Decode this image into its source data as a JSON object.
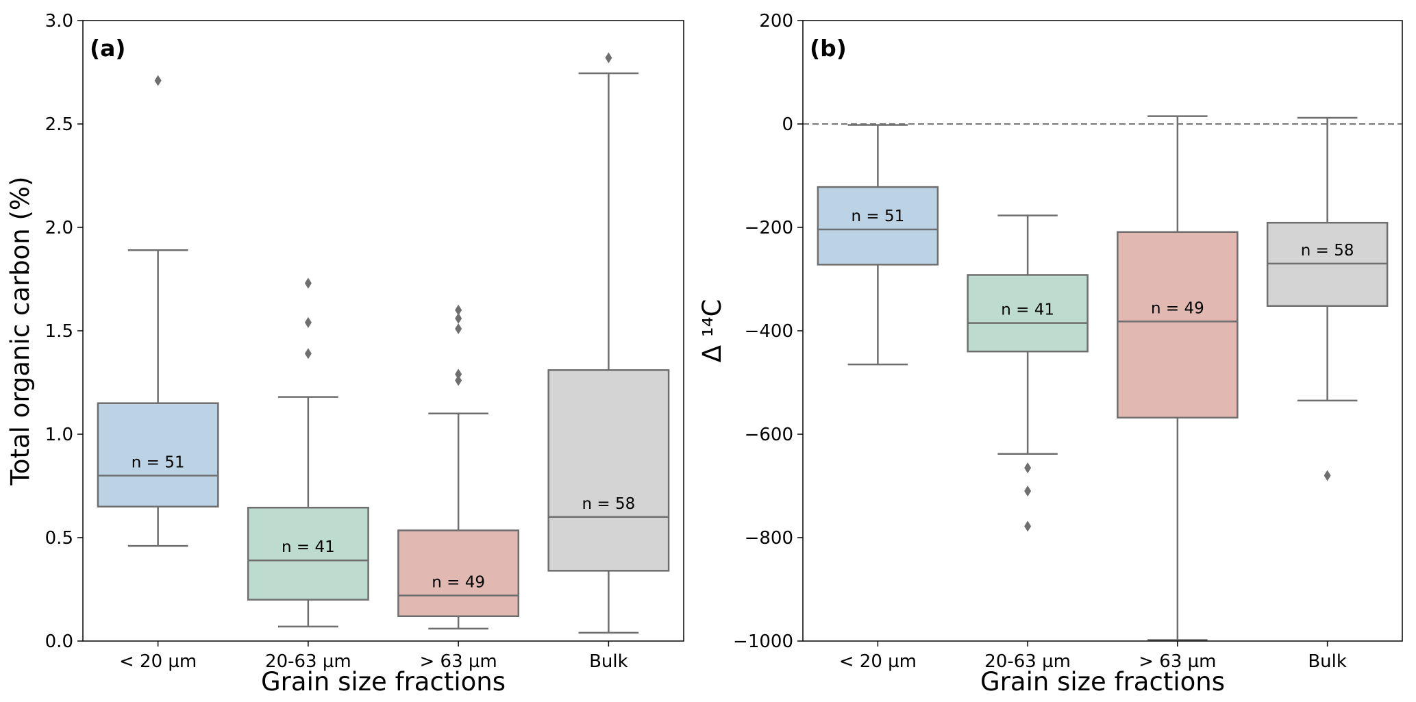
{
  "chart_data": [
    {
      "type": "box",
      "panel_label": "(a)",
      "xlabel": "Grain size fractions",
      "ylabel": "Total organic carbon (%)",
      "ylim": [
        0,
        3.0
      ],
      "yticks": [
        "0.0",
        "0.5",
        "1.0",
        "1.5",
        "2.0",
        "2.5",
        "3.0"
      ],
      "ytick_values": [
        0,
        0.5,
        1.0,
        1.5,
        2.0,
        2.5,
        3.0
      ],
      "categories": [
        "< 20 µm",
        "20-63 µm",
        "> 63 µm",
        "Bulk"
      ],
      "boxes": [
        {
          "min": 0.46,
          "q1": 0.65,
          "median": 0.8,
          "q3": 1.15,
          "max": 1.89,
          "outliers": [
            2.71
          ],
          "n_label": "n = 51",
          "color": "#bcd3e5"
        },
        {
          "min": 0.07,
          "q1": 0.2,
          "median": 0.39,
          "q3": 0.645,
          "max": 1.18,
          "outliers": [
            1.73,
            1.54,
            1.39
          ],
          "n_label": "n = 41",
          "color": "#bddccf"
        },
        {
          "min": 0.06,
          "q1": 0.12,
          "median": 0.22,
          "q3": 0.535,
          "max": 1.1,
          "outliers": [
            1.6,
            1.56,
            1.51,
            1.29,
            1.26
          ],
          "n_label": "n = 49",
          "color": "#e2b8b3"
        },
        {
          "min": 0.04,
          "q1": 0.34,
          "median": 0.6,
          "q3": 1.31,
          "max": 2.745,
          "outliers": [
            2.82
          ],
          "n_label": "n = 58",
          "color": "#d4d4d4"
        }
      ]
    },
    {
      "type": "box",
      "panel_label": "(b)",
      "xlabel": "Grain size fractions",
      "ylabel": "Δ ¹⁴C",
      "ylim": [
        -1000,
        200
      ],
      "yticks": [
        "−1000",
        "−800",
        "−600",
        "−400",
        "−200",
        "0",
        "200"
      ],
      "ytick_values": [
        -1000,
        -800,
        -600,
        -400,
        -200,
        0,
        200
      ],
      "reference_line": 0,
      "categories": [
        "< 20 µm",
        "20-63 µm",
        "> 63 µm",
        "Bulk"
      ],
      "boxes": [
        {
          "min": -465,
          "q1": -272,
          "median": -204,
          "q3": -122,
          "max": -2,
          "outliers": [],
          "n_label": "n = 51",
          "color": "#bcd3e5"
        },
        {
          "min": -638,
          "q1": -440,
          "median": -385,
          "q3": -292,
          "max": -177,
          "outliers": [
            -665,
            -710,
            -778
          ],
          "n_label": "n = 41",
          "color": "#bddccf"
        },
        {
          "min": -998,
          "q1": -568,
          "median": -382,
          "q3": -209,
          "max": 15,
          "outliers": [],
          "n_label": "n = 49",
          "color": "#e2b8b3"
        },
        {
          "min": -535,
          "q1": -352,
          "median": -270,
          "q3": -191,
          "max": 12,
          "outliers": [
            -680
          ],
          "n_label": "n = 58",
          "color": "#d4d4d4"
        }
      ]
    }
  ]
}
